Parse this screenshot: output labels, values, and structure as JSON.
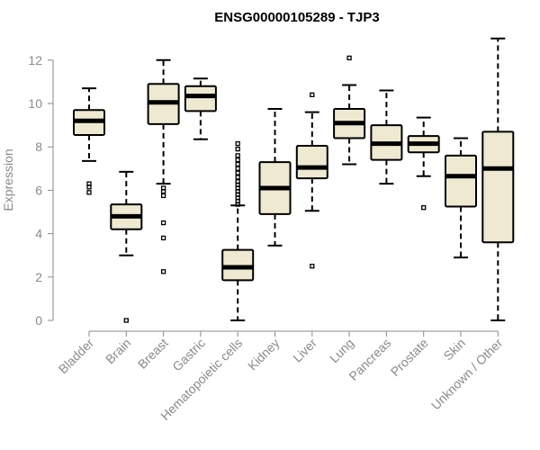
{
  "chart_data": {
    "type": "boxplot",
    "title": "ENSG00000105289 - TJP3",
    "xlabel": "",
    "ylabel": "Expression",
    "ylim": [
      0,
      12.5
    ],
    "yticks": [
      0,
      2,
      4,
      6,
      8,
      10,
      12
    ],
    "box_color": "#efe9d2",
    "categories": [
      "Bladder",
      "Brain",
      "Breast",
      "Gastric",
      "Hematopoietic cells",
      "Kidney",
      "Liver",
      "Lung",
      "Pancreas",
      "Prostate",
      "Skin",
      "Unknown / Other"
    ],
    "series": [
      {
        "name": "Bladder",
        "min": 7.35,
        "q1": 8.55,
        "median": 9.2,
        "q3": 9.7,
        "max": 10.7,
        "outliers": [
          6.3,
          6.15,
          5.9
        ]
      },
      {
        "name": "Brain",
        "min": 3.0,
        "q1": 4.2,
        "median": 4.8,
        "q3": 5.35,
        "max": 6.85,
        "outliers": [
          0.0
        ]
      },
      {
        "name": "Breast",
        "min": 6.3,
        "q1": 9.05,
        "median": 10.05,
        "q3": 10.9,
        "max": 12.0,
        "outliers": [
          6.1,
          5.95,
          5.75,
          4.5,
          3.8,
          2.25
        ]
      },
      {
        "name": "Gastric",
        "min": 8.35,
        "q1": 9.65,
        "median": 10.35,
        "q3": 10.8,
        "max": 11.15,
        "outliers": []
      },
      {
        "name": "Hematopoietic cells",
        "min": 0.0,
        "q1": 1.85,
        "median": 2.45,
        "q3": 3.25,
        "max": 5.3,
        "outliers": [
          5.35,
          5.5,
          5.65,
          5.8,
          5.95,
          6.1,
          6.25,
          6.4,
          6.6,
          6.8,
          7.0,
          7.2,
          7.4,
          7.6,
          7.9,
          8.15
        ]
      },
      {
        "name": "Kidney",
        "min": 3.45,
        "q1": 4.9,
        "median": 6.1,
        "q3": 7.3,
        "max": 9.75,
        "outliers": []
      },
      {
        "name": "Liver",
        "min": 5.05,
        "q1": 6.55,
        "median": 7.05,
        "q3": 8.05,
        "max": 9.6,
        "outliers": [
          10.4,
          2.5
        ]
      },
      {
        "name": "Lung",
        "min": 7.2,
        "q1": 8.4,
        "median": 9.1,
        "q3": 9.75,
        "max": 10.85,
        "outliers": [
          12.1
        ]
      },
      {
        "name": "Pancreas",
        "min": 6.3,
        "q1": 7.4,
        "median": 8.15,
        "q3": 9.0,
        "max": 10.6,
        "outliers": []
      },
      {
        "name": "Prostate",
        "min": 6.65,
        "q1": 7.75,
        "median": 8.15,
        "q3": 8.5,
        "max": 9.35,
        "outliers": [
          5.2
        ]
      },
      {
        "name": "Skin",
        "min": 2.9,
        "q1": 5.25,
        "median": 6.65,
        "q3": 7.6,
        "max": 8.4,
        "outliers": []
      },
      {
        "name": "Unknown / Other",
        "min": 0.0,
        "q1": 3.6,
        "median": 7.0,
        "q3": 8.7,
        "max": 13.0,
        "outliers": []
      }
    ]
  }
}
